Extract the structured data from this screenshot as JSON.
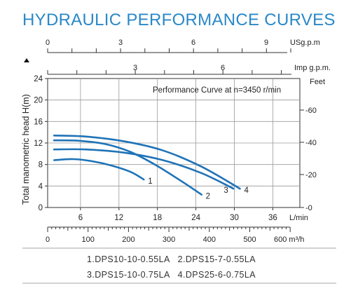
{
  "chart_data": {
    "type": "line",
    "title": "HYDRAULIC PERFORMANCE CURVES",
    "subtitle": "Performance Curve at n=3450 r/min",
    "ylabel": "Total manometric head H(m)",
    "ylim": [
      0,
      24
    ],
    "yticks": [
      "0",
      "4",
      "8",
      "12",
      "16",
      "20",
      "24"
    ],
    "xlabel": "L/min",
    "xlim": [
      0,
      40
    ],
    "xticks": [
      "6",
      "12",
      "18",
      "24",
      "30",
      "36"
    ],
    "secondary_axes": {
      "usgpm": {
        "label": "USg.p.m",
        "ticks": [
          "0",
          "3",
          "6",
          "9"
        ]
      },
      "impgpm": {
        "label": "Imp g.p.m.",
        "ticks": [
          "3",
          "6"
        ]
      },
      "feet": {
        "label": "Feet",
        "ticks": [
          "0",
          "20",
          "40",
          "60"
        ]
      },
      "m3h": {
        "label": "600 m³/h",
        "ticks": [
          "0",
          "100",
          "200",
          "300",
          "400",
          "500"
        ]
      }
    },
    "series": [
      {
        "name": "1",
        "x": [
          1,
          4,
          7,
          10,
          13,
          15
        ],
        "y": [
          8.8,
          9.0,
          8.6,
          7.8,
          6.6,
          5.2
        ]
      },
      {
        "name": "2",
        "x": [
          1,
          5,
          9,
          13,
          17,
          21,
          24
        ],
        "y": [
          12.5,
          12.4,
          11.8,
          10.3,
          7.8,
          4.8,
          2.4
        ]
      },
      {
        "name": "3",
        "x": [
          1,
          6,
          12,
          18,
          24,
          29
        ],
        "y": [
          10.8,
          10.8,
          10.2,
          8.8,
          6.4,
          3.5
        ]
      },
      {
        "name": "4",
        "x": [
          1,
          6,
          12,
          18,
          24,
          30
        ],
        "y": [
          13.4,
          13.2,
          12.3,
          10.6,
          7.6,
          3.5
        ]
      }
    ],
    "grid": true,
    "legend_position": "bottom"
  },
  "legend": {
    "row1": "1.DPS10-10-0.55LA   2.DPS15-7-0.55LA",
    "row2": "3.DPS15-10-0.75LA   4.DPS25-6-0.75LA"
  },
  "colors": {
    "title": "#2a88c8",
    "curve": "#1f73b7"
  }
}
